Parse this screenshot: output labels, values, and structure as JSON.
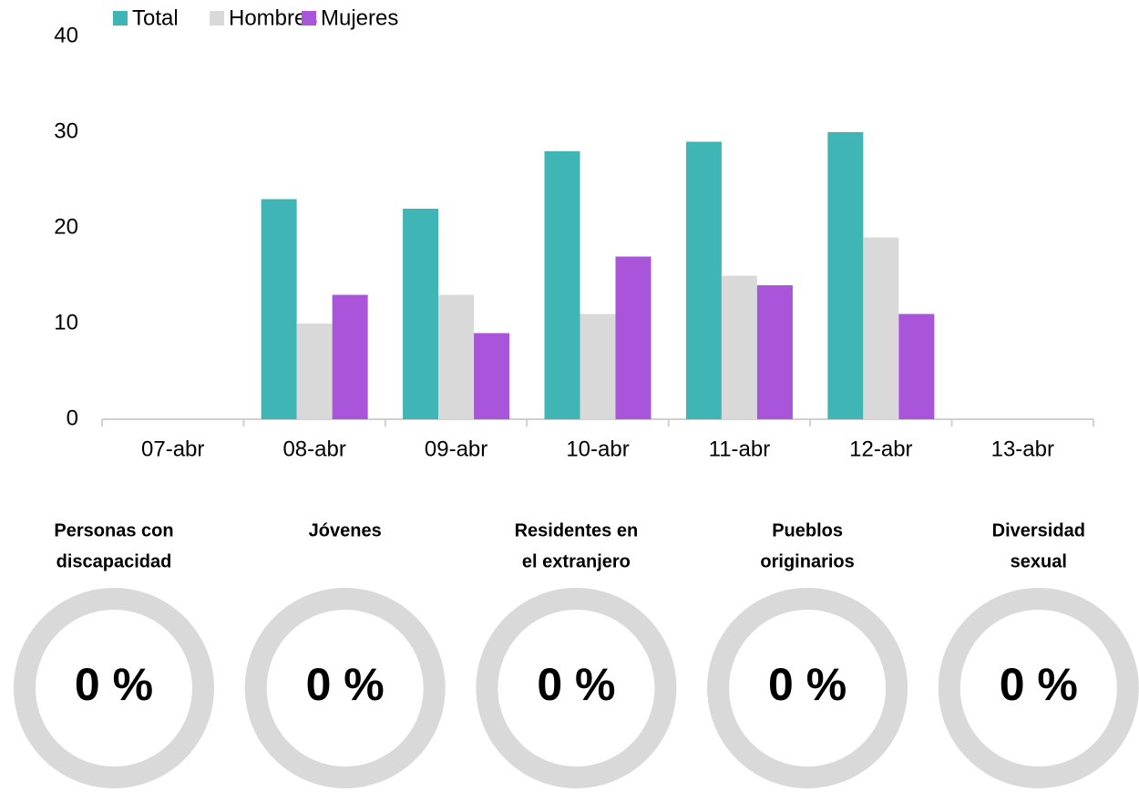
{
  "chart_data": [
    {
      "type": "bar",
      "categories": [
        "07-abr",
        "08-abr",
        "09-abr",
        "10-abr",
        "11-abr",
        "12-abr",
        "13-abr"
      ],
      "series": [
        {
          "name": "Total",
          "color": "#40b5b5",
          "values": [
            null,
            23,
            22,
            28,
            29,
            30,
            null
          ]
        },
        {
          "name": "Hombres",
          "color": "#d9d9d9",
          "values": [
            null,
            10,
            13,
            11,
            15,
            19,
            null
          ]
        },
        {
          "name": "Mujeres",
          "color": "#a855d9",
          "values": [
            null,
            13,
            9,
            17,
            14,
            11,
            null
          ]
        }
      ],
      "ylim": [
        0,
        40
      ],
      "yticks": [
        0,
        10,
        20,
        30,
        40
      ],
      "grid": false,
      "legend": "top"
    },
    {
      "type": "gauge",
      "items": [
        {
          "title": [
            "Personas con",
            "discapacidad"
          ],
          "value": 0,
          "value_label": "0 %"
        },
        {
          "title": [
            "Jóvenes"
          ],
          "value": 0,
          "value_label": "0 %"
        },
        {
          "title": [
            "Residentes en",
            "el extranjero"
          ],
          "value": 0,
          "value_label": "0 %"
        },
        {
          "title": [
            "Pueblos",
            "originarios"
          ],
          "value": 0,
          "value_label": "0 %"
        },
        {
          "title": [
            "Diversidad",
            "sexual"
          ],
          "value": 0,
          "value_label": "0 %"
        }
      ]
    }
  ]
}
